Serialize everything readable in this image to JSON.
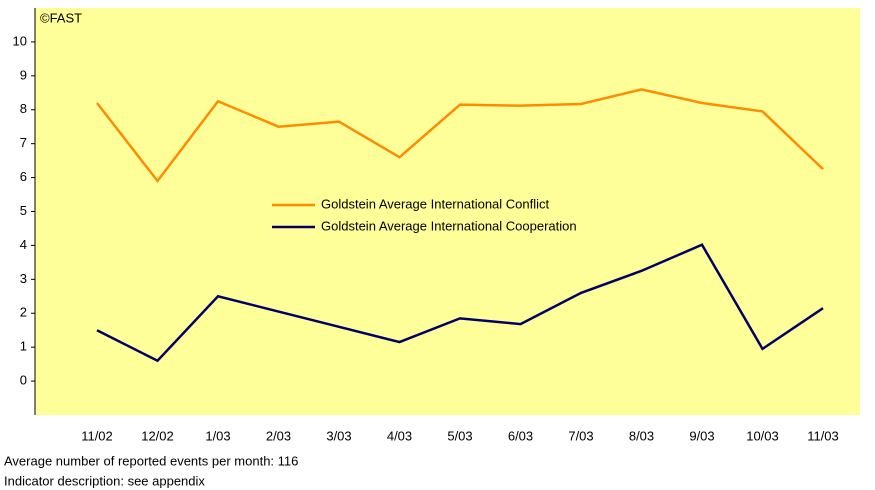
{
  "chart_data": {
    "type": "line",
    "annotation": "©FAST",
    "categories": [
      "11/02",
      "12/02",
      "1/03",
      "2/03",
      "3/03",
      "4/03",
      "5/03",
      "6/03",
      "7/03",
      "8/03",
      "9/03",
      "10/03",
      "11/03"
    ],
    "series": [
      {
        "name": "Goldstein Average International Conflict",
        "color": "#ff8c00",
        "values": [
          8.2,
          5.9,
          8.25,
          7.5,
          7.65,
          6.6,
          8.15,
          8.12,
          8.17,
          8.6,
          8.2,
          7.95,
          6.25
        ]
      },
      {
        "name": "Goldstein Average International Cooperation",
        "color": "#000066",
        "values": [
          1.5,
          0.6,
          2.5,
          2.05,
          1.6,
          1.15,
          1.85,
          1.68,
          2.6,
          3.25,
          4.02,
          0.95,
          2.15
        ]
      }
    ],
    "ylim": [
      -1,
      11
    ],
    "yticks": [
      0,
      1,
      2,
      3,
      4,
      5,
      6,
      7,
      8,
      9,
      10
    ],
    "background": "#ffff99",
    "footnotes": [
      "Average number of reported events per month: 116",
      "Indicator description: see appendix"
    ]
  }
}
